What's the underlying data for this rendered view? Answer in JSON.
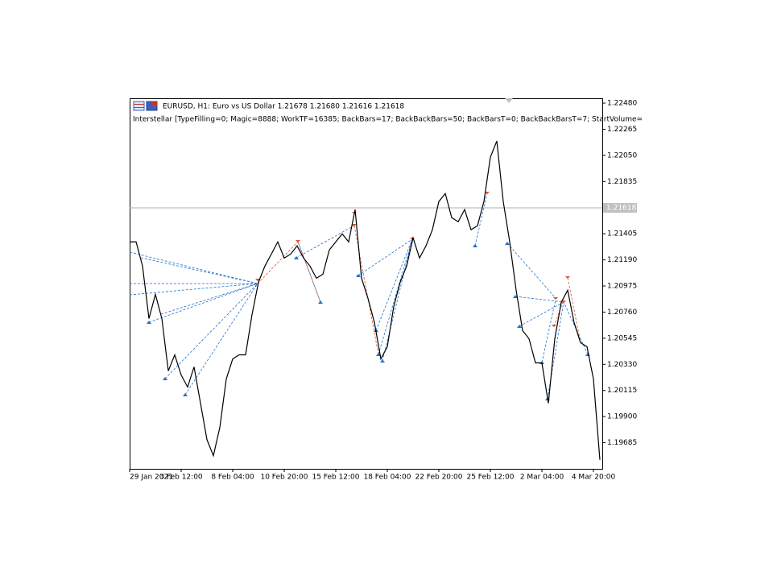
{
  "chart_data": {
    "type": "line",
    "title": "EURUSD, H1:  Euro vs US Dollar  1.21678 1.21680 1.21616 1.21618",
    "subtitle": "Interstellar [TypeFilling=0; Magic=8888; WorkTF=16385; BackBars=17; BackBackBars=50; BackBarsT=0; BackBackBarsT=7; StartVolume=",
    "categories": [
      "29 Jan 2021",
      null,
      null,
      null,
      null,
      null,
      null,
      null,
      "3 Feb 12:00",
      null,
      null,
      null,
      null,
      null,
      null,
      null,
      "8 Feb 04:00",
      null,
      null,
      null,
      null,
      null,
      null,
      null,
      "10 Feb 20:00",
      null,
      null,
      null,
      null,
      null,
      null,
      null,
      "15 Feb 12:00",
      null,
      null,
      null,
      null,
      null,
      null,
      null,
      "18 Feb 04:00",
      null,
      null,
      null,
      null,
      null,
      null,
      null,
      "22 Feb 20:00",
      null,
      null,
      null,
      null,
      null,
      null,
      null,
      "25 Feb 12:00",
      null,
      null,
      null,
      null,
      null,
      null,
      null,
      "2 Mar 04:00",
      null,
      null,
      null,
      null,
      null,
      null,
      null,
      "4 Mar 20:00",
      null
    ],
    "series": [
      {
        "name": "EURUSD",
        "color": "#000000",
        "values": [
          1.21338,
          1.21338,
          1.21139,
          1.20707,
          1.20906,
          1.20707,
          1.20276,
          1.20408,
          1.20242,
          1.20143,
          1.20309,
          1.2001,
          1.19711,
          1.19578,
          1.19811,
          1.20209,
          1.20375,
          1.20408,
          1.20408,
          1.2074,
          1.21006,
          1.21139,
          1.21238,
          1.21338,
          1.21205,
          1.21238,
          1.21305,
          1.21205,
          1.21139,
          1.21039,
          1.21072,
          1.21272,
          1.21338,
          1.21404,
          1.21338,
          1.21604,
          1.21039,
          1.20873,
          1.20674,
          1.20375,
          1.20475,
          1.20807,
          1.21006,
          1.21139,
          1.21371,
          1.21205,
          1.21305,
          1.21438,
          1.2167,
          1.21736,
          1.21537,
          1.21504,
          1.21604,
          1.21438,
          1.21471,
          1.2167,
          1.22035,
          1.22168,
          1.2167,
          1.21338,
          1.2094,
          1.20608,
          1.20541,
          1.20342,
          1.20342,
          1.2001,
          1.20541,
          1.2084,
          1.2094,
          1.20674,
          1.20508,
          1.20475,
          1.20209,
          1.19545
        ]
      }
    ],
    "ylim": [
      1.1947,
      1.2252
    ],
    "yticks": [
      {
        "value": 1.2248,
        "label": "1.22480"
      },
      1.22265,
      {
        "value": 1.2205,
        "label": "1.22050"
      },
      1.21835,
      1.21405,
      {
        "value": 1.2119,
        "label": "1.21190"
      },
      1.20975,
      {
        "value": 1.2076,
        "label": "1.20760"
      },
      1.20545,
      {
        "value": 1.2033,
        "label": "1.20330"
      },
      1.20115,
      {
        "value": 1.199,
        "label": "1.19900"
      },
      1.19685
    ],
    "current_price": 1.21618,
    "grid": false
  }
}
